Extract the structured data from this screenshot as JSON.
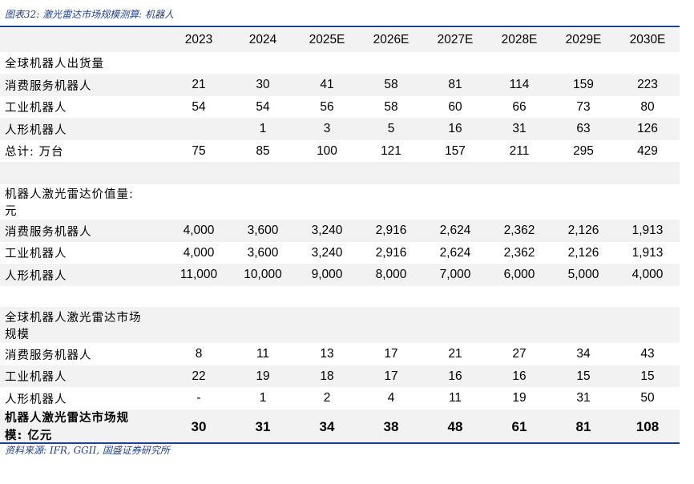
{
  "title": "图表32: 激光雷达市场规模测算: 机器人",
  "source": "资料来源: IFR, GGII, 国盛证券研究所",
  "years": [
    "2023",
    "2024",
    "2025E",
    "2026E",
    "2027E",
    "2028E",
    "2029E",
    "2030E"
  ],
  "sections": {
    "shipments": {
      "header": "全球机器人出货量",
      "consumer": {
        "label": "消费服务机器人",
        "values": [
          "21",
          "30",
          "41",
          "58",
          "81",
          "114",
          "159",
          "223"
        ]
      },
      "industrial": {
        "label": "工业机器人",
        "values": [
          "54",
          "54",
          "56",
          "58",
          "60",
          "66",
          "73",
          "80"
        ]
      },
      "humanoid": {
        "label": "人形机器人",
        "values": [
          "",
          "1",
          "3",
          "5",
          "16",
          "31",
          "63",
          "126"
        ]
      },
      "total": {
        "label": "总计: 万台",
        "values": [
          "75",
          "85",
          "100",
          "121",
          "157",
          "211",
          "295",
          "429"
        ]
      }
    },
    "value": {
      "header_line1": "机器人激光雷达价值量:",
      "header_line2": "元",
      "consumer": {
        "label": "消费服务机器人",
        "values": [
          "4,000",
          "3,600",
          "3,240",
          "2,916",
          "2,624",
          "2,362",
          "2,126",
          "1,913"
        ]
      },
      "industrial": {
        "label": "工业机器人",
        "values": [
          "4,000",
          "3,600",
          "3,240",
          "2,916",
          "2,624",
          "2,362",
          "2,126",
          "1,913"
        ]
      },
      "humanoid": {
        "label": "人形机器人",
        "values": [
          "11,000",
          "10,000",
          "9,000",
          "8,000",
          "7,000",
          "6,000",
          "5,000",
          "4,000"
        ]
      }
    },
    "market": {
      "header_line1": "全球机器人激光雷达市场",
      "header_line2": "规模",
      "consumer": {
        "label": "消费服务机器人",
        "values": [
          "8",
          "11",
          "13",
          "17",
          "21",
          "27",
          "34",
          "43"
        ]
      },
      "industrial": {
        "label": "工业机器人",
        "values": [
          "22",
          "19",
          "18",
          "17",
          "16",
          "16",
          "15",
          "15"
        ]
      },
      "humanoid": {
        "label": "人形机器人",
        "values": [
          "-",
          "1",
          "2",
          "4",
          "11",
          "19",
          "31",
          "50"
        ]
      },
      "total_line1": "机器人激光雷达市场规",
      "total_line2": "模: 亿元",
      "total_values": [
        "30",
        "31",
        "34",
        "38",
        "48",
        "61",
        "81",
        "108"
      ]
    }
  }
}
